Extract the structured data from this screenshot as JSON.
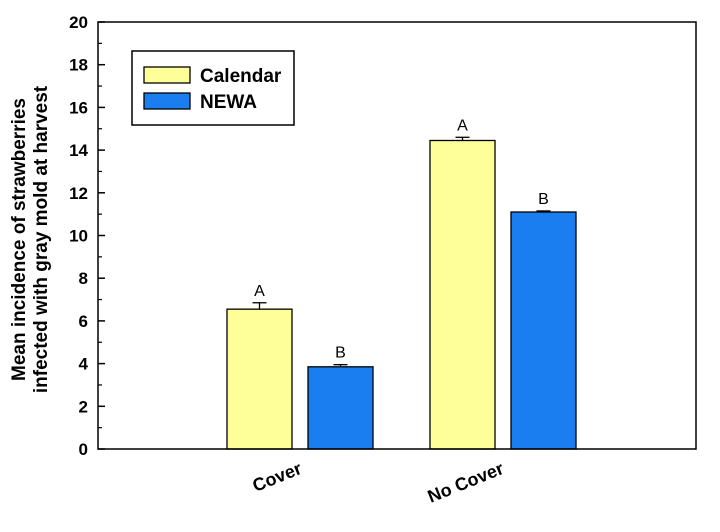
{
  "chart_data": {
    "type": "bar",
    "title": "",
    "xlabel": "",
    "ylabel": [
      "Mean incidence of strawberries",
      "infected with gray mold at harvest"
    ],
    "ylim": [
      0,
      20
    ],
    "yticks": [
      0,
      2,
      4,
      6,
      8,
      10,
      12,
      14,
      16,
      18,
      20
    ],
    "categories": [
      "Cover",
      "No Cover"
    ],
    "series": [
      {
        "name": "Calendar",
        "color": "#ffff99",
        "values": [
          6.55,
          14.45
        ],
        "errors": [
          0.3,
          0.15
        ],
        "labels": [
          "A",
          "A"
        ]
      },
      {
        "name": "NEWA",
        "color": "#1a7ef0",
        "values": [
          3.85,
          11.1
        ],
        "errors": [
          0.1,
          0.05
        ],
        "labels": [
          "B",
          "B"
        ]
      }
    ],
    "legend": {
      "position": "top-left",
      "boxed": true
    },
    "grid": false
  }
}
